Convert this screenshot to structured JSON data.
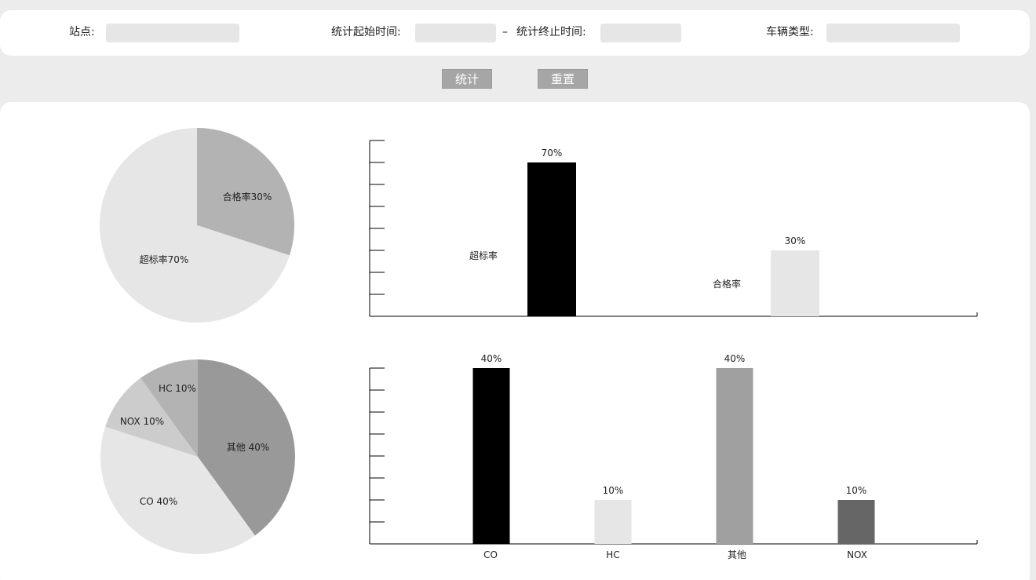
{
  "filters": {
    "station_label": "站点:",
    "start_time_label": "统计起始时间:",
    "dash": "–",
    "end_time_label": "统计终止时间:",
    "vehicle_type_label": "车辆类型:"
  },
  "buttons": {
    "stat": "统计",
    "reset": "重置"
  },
  "colors": {
    "pie1": [
      "#b3b3b3",
      "#e6e6e6"
    ],
    "bar1": [
      "#000000",
      "#e6e6e6"
    ],
    "pie2": [
      "#999999",
      "#e6e6e6",
      "#cccccc",
      "#b3b3b3"
    ],
    "bar2": [
      "#000000",
      "#e6e6e6",
      "#a0a0a0",
      "#666666"
    ]
  },
  "chart_data": [
    {
      "type": "pie",
      "slices": [
        {
          "label": "合格率30%",
          "value": 30
        },
        {
          "label": "超标率70%",
          "value": 70
        }
      ]
    },
    {
      "type": "bar",
      "categories": [
        "超标率",
        "合格率"
      ],
      "values": [
        70,
        30
      ],
      "value_labels": [
        "70%",
        "30%"
      ],
      "ylim": [
        0,
        80
      ]
    },
    {
      "type": "pie",
      "slices": [
        {
          "label": "其他 40%",
          "value": 40
        },
        {
          "label": "CO 40%",
          "value": 40
        },
        {
          "label": "NOX 10%",
          "value": 10
        },
        {
          "label": "HC 10%",
          "value": 10
        }
      ]
    },
    {
      "type": "bar",
      "categories": [
        "CO",
        "HC",
        "其他",
        "NOX"
      ],
      "values": [
        40,
        10,
        40,
        10
      ],
      "value_labels": [
        "40%",
        "10%",
        "40%",
        "10%"
      ],
      "ylim": [
        0,
        40
      ]
    }
  ]
}
